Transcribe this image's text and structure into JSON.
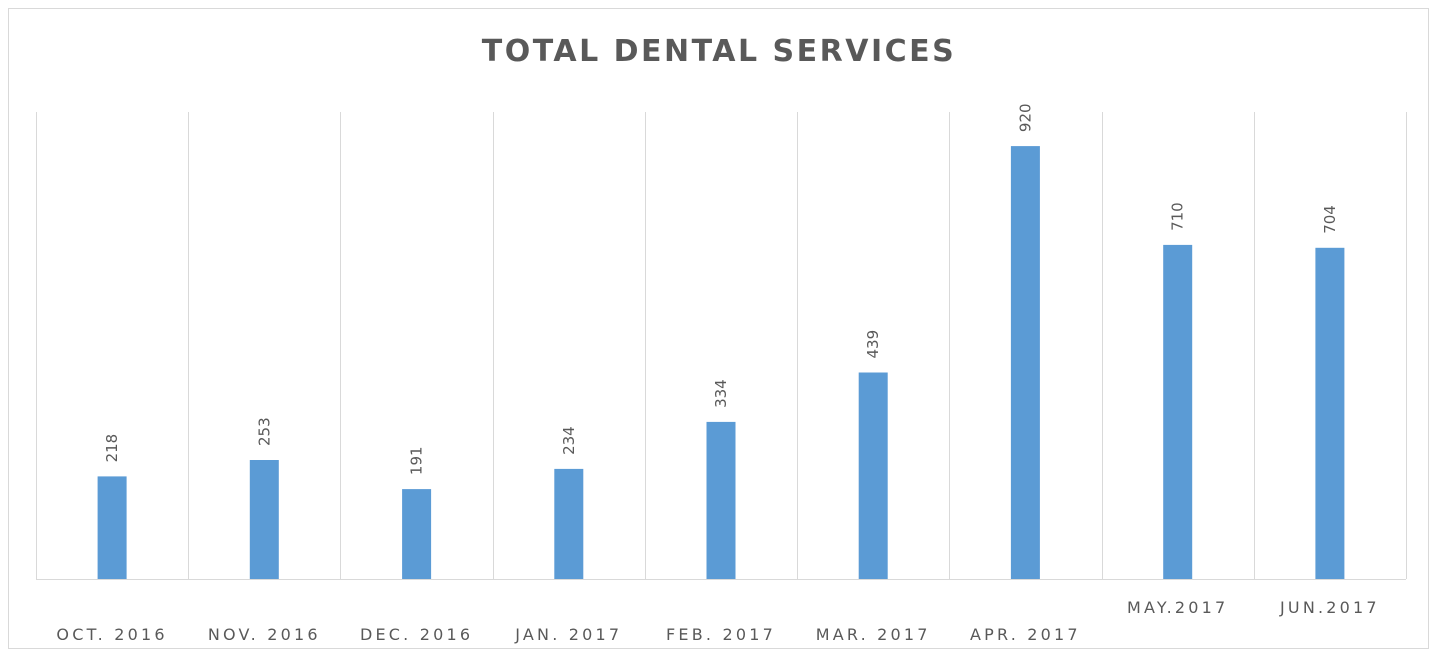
{
  "chart_data": {
    "type": "bar",
    "title": "TOTAL DENTAL SERVICES",
    "xlabel": "",
    "ylabel": "",
    "categories": [
      "OCT. 2016",
      "NOV. 2016",
      "DEC. 2016",
      "JAN. 2017",
      "FEB. 2017",
      "MAR. 2017",
      "APR. 2017",
      "MAY.2017",
      "JUN.2017"
    ],
    "values": [
      218,
      253,
      191,
      234,
      334,
      439,
      920,
      710,
      704
    ],
    "ylim": [
      0,
      1000
    ],
    "grid": "vertical category dividers",
    "legend": "none",
    "bar_color": "#5b9bd5",
    "gridline_color": "#d9d9d9",
    "text_color": "#595959",
    "data_labels": "rotated vertical above bars"
  }
}
